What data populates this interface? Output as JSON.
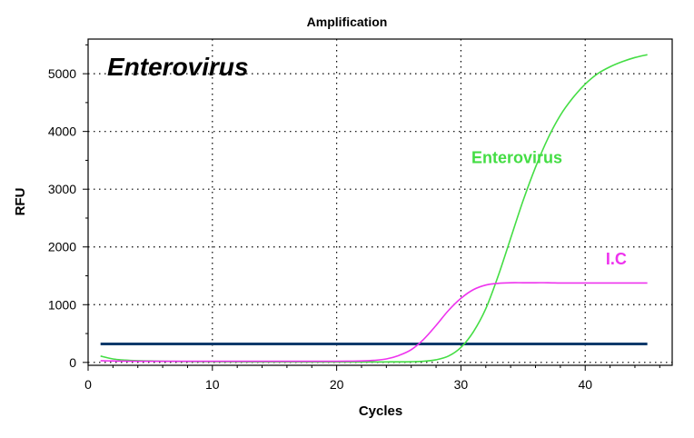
{
  "chart_data": {
    "type": "line",
    "title": "Amplification",
    "inset_title": "Enterovirus",
    "xlabel": "Cycles",
    "ylabel": "RFU",
    "xlim": [
      0,
      47
    ],
    "ylim": [
      -50,
      5600
    ],
    "x_ticks": [
      0,
      10,
      20,
      30,
      40
    ],
    "y_ticks": [
      0,
      1000,
      2000,
      3000,
      4000,
      5000
    ],
    "grid": true,
    "threshold": {
      "value": 320,
      "x_start": 1,
      "x_end": 45,
      "color": "#0c3a6b"
    },
    "series": [
      {
        "name": "Enterovirus",
        "label_pos": {
          "x": 34.5,
          "y": 3450
        },
        "color": "#44dd44",
        "x": [
          1,
          2,
          3,
          4,
          5,
          6,
          7,
          8,
          9,
          10,
          11,
          12,
          13,
          14,
          15,
          16,
          17,
          18,
          19,
          20,
          21,
          22,
          23,
          24,
          25,
          26,
          27,
          28,
          29,
          30,
          31,
          32,
          33,
          34,
          35,
          36,
          37,
          38,
          39,
          40,
          41,
          42,
          43,
          44,
          45
        ],
        "y": [
          110,
          60,
          40,
          30,
          25,
          20,
          18,
          15,
          14,
          13,
          12,
          11,
          10,
          10,
          9,
          9,
          9,
          8,
          8,
          8,
          8,
          8,
          8,
          9,
          10,
          12,
          20,
          45,
          110,
          260,
          530,
          930,
          1500,
          2150,
          2800,
          3380,
          3880,
          4280,
          4580,
          4820,
          5000,
          5120,
          5210,
          5280,
          5330
        ]
      },
      {
        "name": "I.C",
        "label_pos": {
          "x": 42.5,
          "y": 1700
        },
        "color": "#ee33ee",
        "x": [
          1,
          2,
          3,
          4,
          5,
          6,
          7,
          8,
          9,
          10,
          11,
          12,
          13,
          14,
          15,
          16,
          17,
          18,
          19,
          20,
          21,
          22,
          23,
          24,
          25,
          26,
          27,
          28,
          29,
          30,
          31,
          32,
          33,
          34,
          35,
          36,
          37,
          38,
          39,
          40,
          41,
          42,
          43,
          44,
          45
        ],
        "y": [
          30,
          25,
          22,
          20,
          20,
          20,
          20,
          20,
          20,
          20,
          20,
          20,
          20,
          20,
          20,
          20,
          20,
          20,
          20,
          20,
          22,
          25,
          35,
          60,
          120,
          220,
          400,
          640,
          900,
          1110,
          1260,
          1340,
          1370,
          1380,
          1380,
          1380,
          1380,
          1375,
          1375,
          1375,
          1375,
          1375,
          1375,
          1375,
          1375
        ]
      }
    ]
  }
}
